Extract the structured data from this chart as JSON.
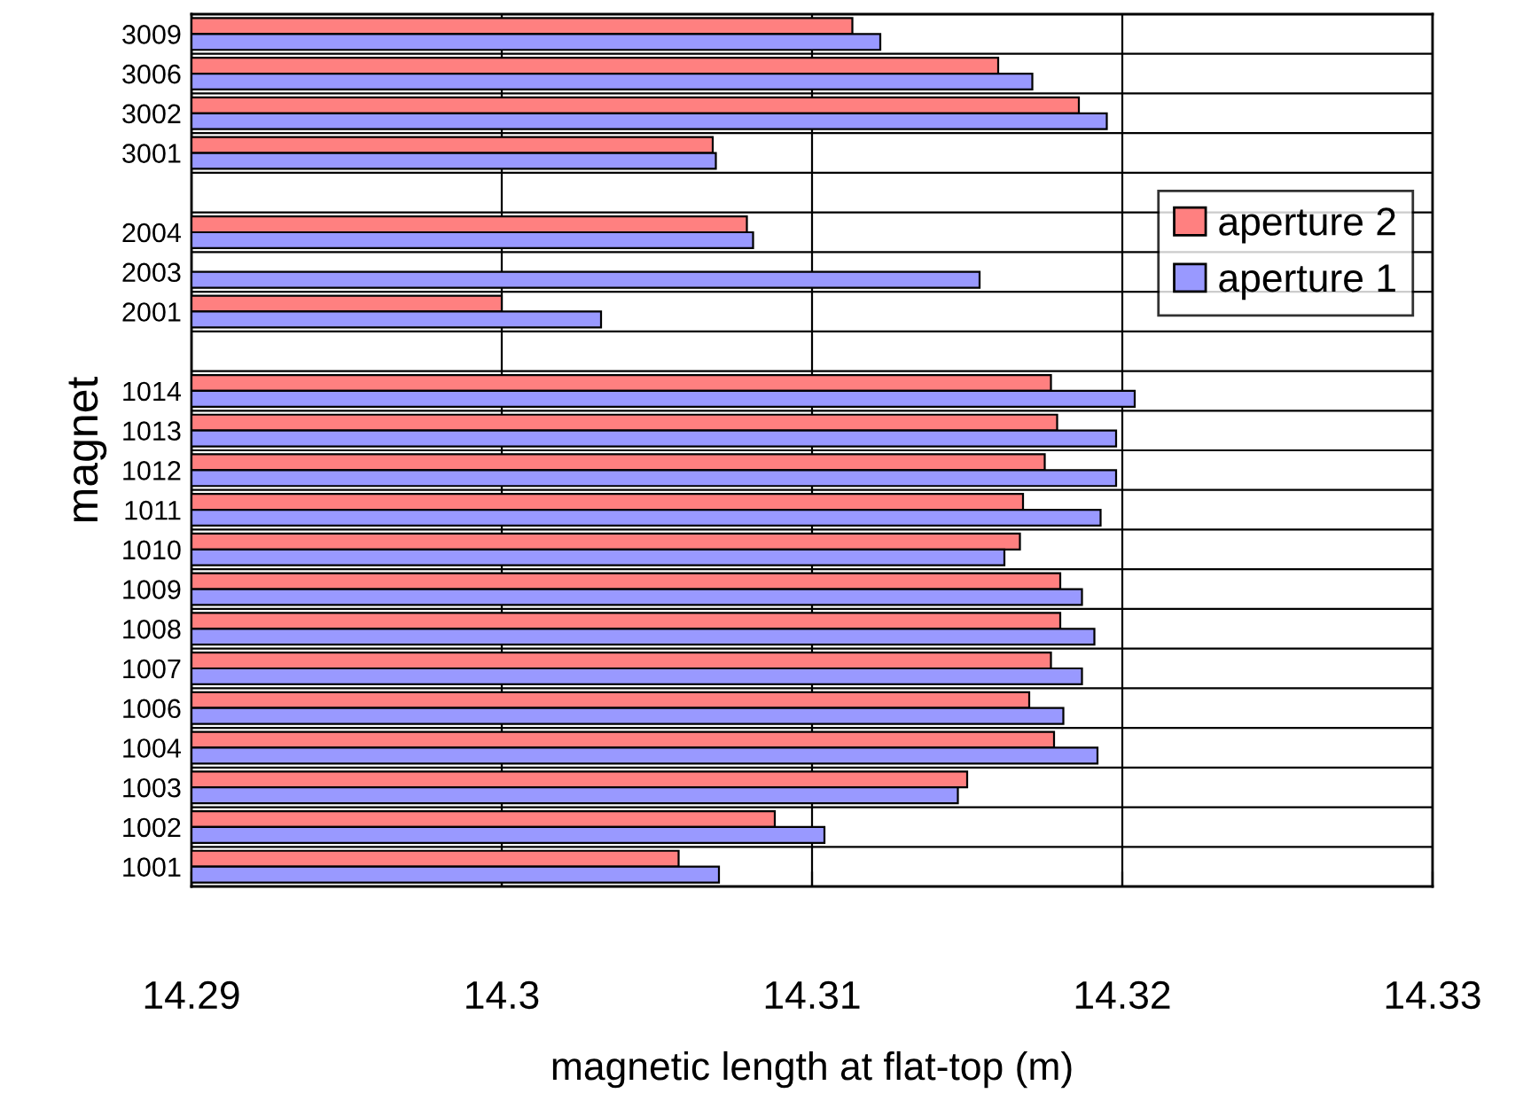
{
  "chart_data": {
    "type": "bar",
    "orientation": "horizontal",
    "xlabel": "magnetic length at flat-top (m)",
    "ylabel": "magnet",
    "categories": [
      "3009",
      "3006",
      "3002",
      "3001",
      null,
      "2004",
      "2003",
      "2001",
      null,
      "1014",
      "1013",
      "1012",
      "1011",
      "1010",
      "1009",
      "1008",
      "1007",
      "1006",
      "1004",
      "1003",
      "1002",
      "1001"
    ],
    "series": [
      {
        "name": "aperture 2",
        "color": "#ff8080",
        "values": [
          14.3113,
          14.316,
          14.3186,
          14.3068,
          null,
          14.3079,
          null,
          14.3,
          null,
          14.3177,
          14.3179,
          14.3175,
          14.3168,
          14.3167,
          14.318,
          14.318,
          14.3177,
          14.317,
          14.3178,
          14.315,
          14.3088,
          14.3057
        ]
      },
      {
        "name": "aperture 1",
        "color": "#9999ff",
        "values": [
          14.3122,
          14.3171,
          14.3195,
          14.3069,
          null,
          14.3081,
          14.3154,
          14.3032,
          null,
          14.3204,
          14.3198,
          14.3198,
          14.3193,
          14.3162,
          14.3187,
          14.3191,
          14.3187,
          14.3181,
          14.3192,
          14.3147,
          14.3104,
          14.307
        ]
      }
    ],
    "xlim": [
      14.29,
      14.33
    ],
    "xticks": [
      14.29,
      14.3,
      14.31,
      14.32,
      14.33
    ],
    "grid": true,
    "legend": "right"
  }
}
